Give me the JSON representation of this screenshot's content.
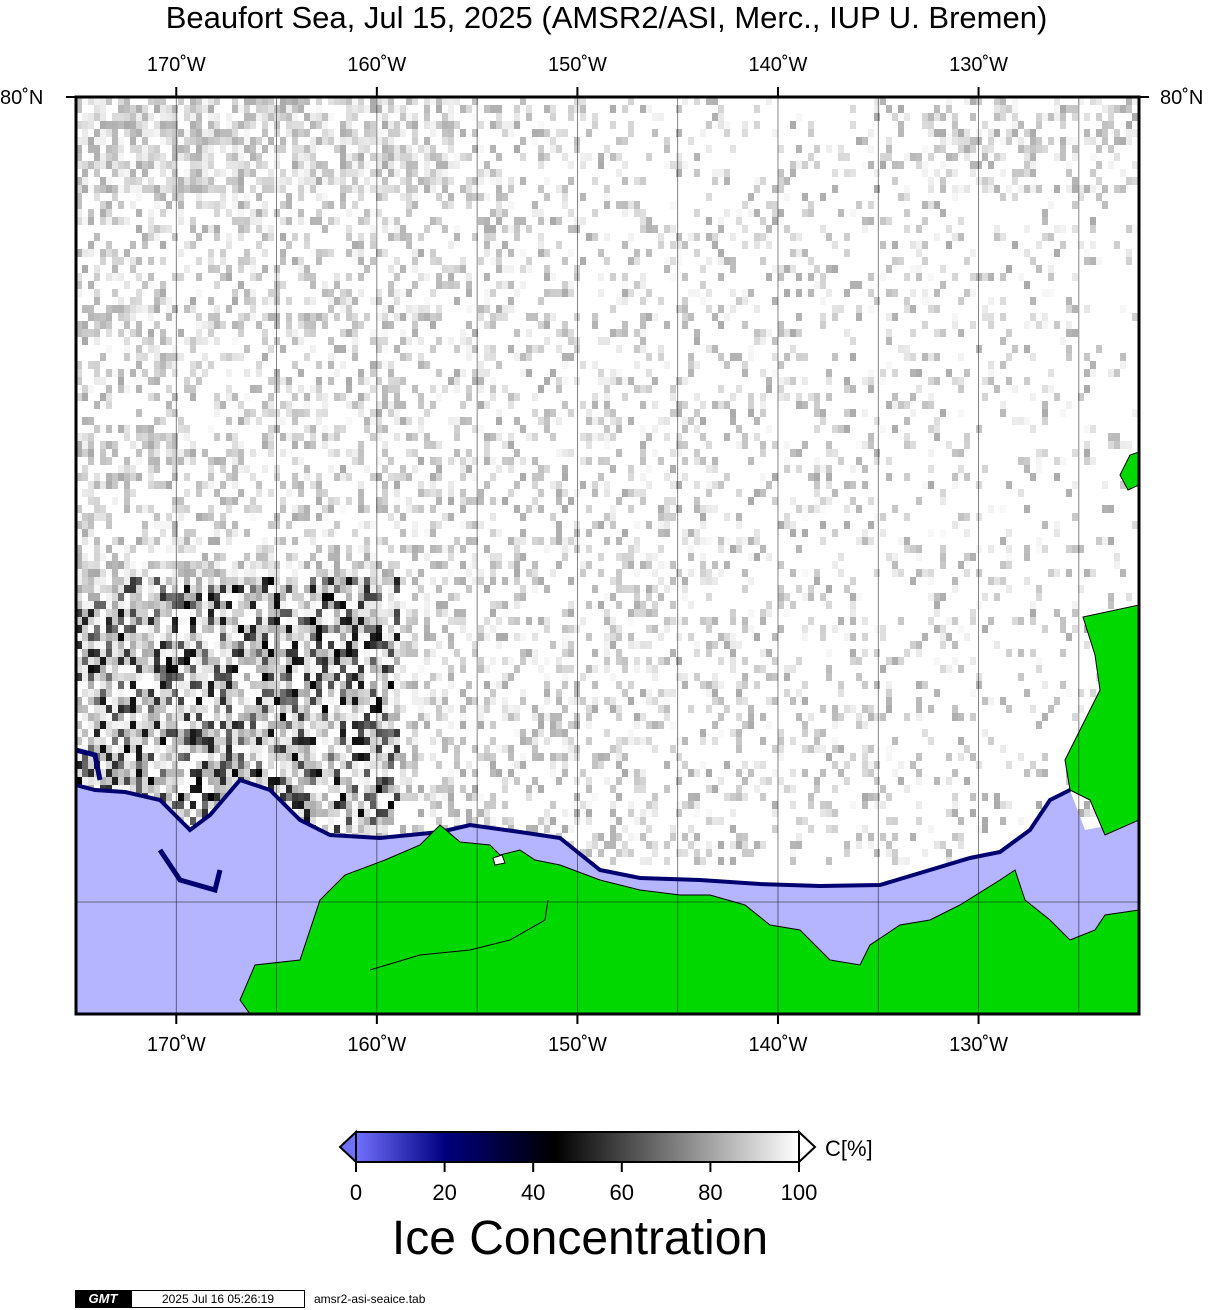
{
  "title": "Beaufort Sea, Jul 15, 2025 (AMSR2/ASI, Merc., IUP U. Bremen)",
  "map": {
    "lon_range": [
      -175,
      -122
    ],
    "lat_top": 80,
    "lon_ticks": [
      {
        "value": -170,
        "label": "170˚W"
      },
      {
        "value": -160,
        "label": "160˚W"
      },
      {
        "value": -150,
        "label": "150˚W"
      },
      {
        "value": -140,
        "label": "140˚W"
      },
      {
        "value": -130,
        "label": "130˚W"
      }
    ],
    "lat_labels": {
      "left": "80˚N",
      "right": "80˚N"
    },
    "colors": {
      "land": "#00d800",
      "open_water": "#b4b4ff",
      "ice_full": "#ffffff",
      "ice_zero": "#000000",
      "low_concentration": "#000070"
    }
  },
  "colorbar": {
    "ticks": [
      "0",
      "20",
      "40",
      "60",
      "80",
      "100"
    ],
    "unit": "C[%]",
    "title": "Ice Concentration",
    "stops": [
      {
        "value": 0,
        "color": "#7070ff"
      },
      {
        "value": 20,
        "color": "#000080"
      },
      {
        "value": 45,
        "color": "#000000"
      },
      {
        "value": 100,
        "color": "#ffffff"
      }
    ]
  },
  "footer": {
    "logo": "GMT",
    "timestamp": "2025 Jul 16 05:26:19",
    "source_file": "amsr2-asi-seaice.tab"
  }
}
